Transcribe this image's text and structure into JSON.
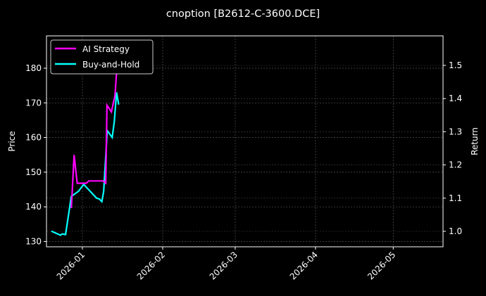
{
  "chart_data": {
    "type": "line",
    "title": "cnoption [B2612-C-3600.DCE]",
    "xlabel": "",
    "ylabel": "Price",
    "y2label": "Return",
    "x_ticks": [
      "2026-01",
      "2026-02",
      "2026-03",
      "2026-04",
      "2026-05"
    ],
    "y_ticks": [
      130,
      140,
      150,
      160,
      170,
      180
    ],
    "y2_ticks": [
      1.0,
      1.1,
      1.2,
      1.3,
      1.4,
      1.5
    ],
    "ylim": [
      128.5,
      188
    ],
    "y2lim": [
      0.955,
      1.59
    ],
    "xlim_days": [
      -12,
      140
    ],
    "grid": true,
    "legend_position": "upper left",
    "colors": {
      "background": "#000000",
      "ai_strategy": "#ff00ff",
      "buy_and_hold": "#00ffff",
      "grid": "#555555",
      "axes": "#ffffff"
    },
    "series": [
      {
        "name": "AI Strategy",
        "axis": "right",
        "color": "#ff00ff",
        "x_days": [
          -4.3,
          -4.0,
          -3.2,
          -2.0,
          1.5,
          2.5,
          4.5,
          8.0,
          9.0,
          9.5,
          11.2,
          12.6,
          13.8
        ],
        "values": [
          1.07,
          1.11,
          1.23,
          1.145,
          1.145,
          1.152,
          1.152,
          1.152,
          1.145,
          1.38,
          1.36,
          1.41,
          1.55
        ]
      },
      {
        "name": "Buy-and-Hold",
        "axis": "left",
        "color": "#00ffff",
        "x_days": [
          -12,
          -9,
          -8.5,
          -7.8,
          -6.5,
          -4.3,
          -1.5,
          0.5,
          5.5,
          6.5,
          7.5,
          8.2,
          9.6,
          11.5,
          12.3,
          13.2,
          14
        ],
        "values": [
          133,
          132,
          131.8,
          132.2,
          132.0,
          143,
          144.5,
          146.5,
          142.5,
          142.3,
          141.5,
          144.5,
          162,
          160,
          164.5,
          173,
          169.5
        ]
      }
    ]
  }
}
